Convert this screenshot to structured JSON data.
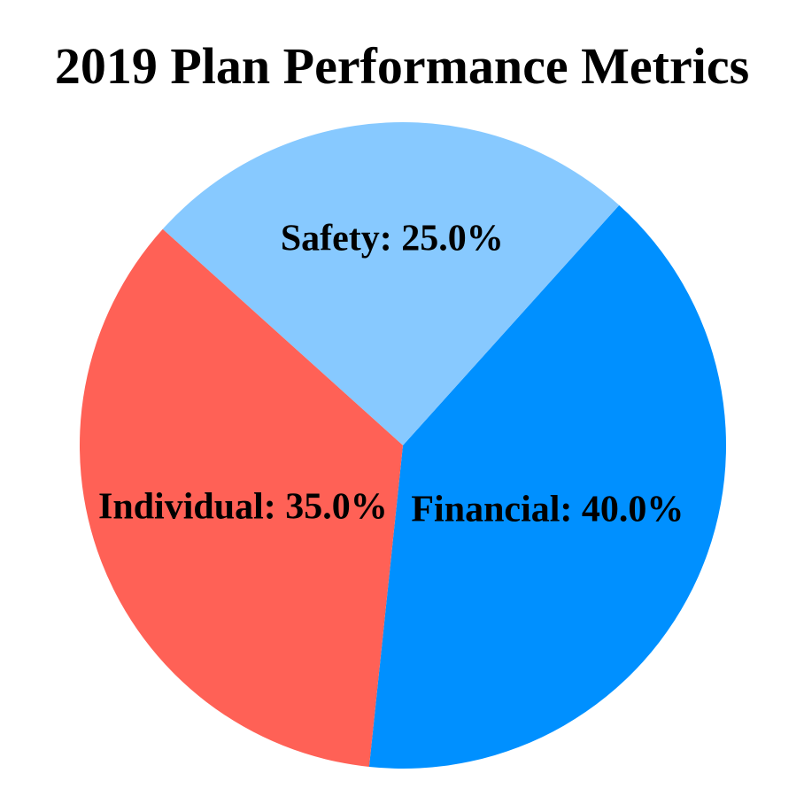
{
  "chart_data": {
    "type": "pie",
    "title": "2019 Plan Performance Metrics",
    "slices": [
      {
        "label": "Financial",
        "value": 40.0,
        "display": "Financial: 40.0%",
        "color": "#0090FF",
        "label_distance": 0.49
      },
      {
        "label": "Safety",
        "value": 25.0,
        "display": "Safety: 25.0%",
        "color": "#87C9FF",
        "label_distance": 0.64
      },
      {
        "label": "Individual",
        "value": 35.0,
        "display": "Individual: 35.0%",
        "color": "#FF6156",
        "label_distance": 0.53
      }
    ],
    "start_angle_deg": 264,
    "direction": "counterclockwise",
    "label_color": "#000000",
    "background": "#FFFFFF",
    "legend": "none",
    "axes": "none"
  }
}
